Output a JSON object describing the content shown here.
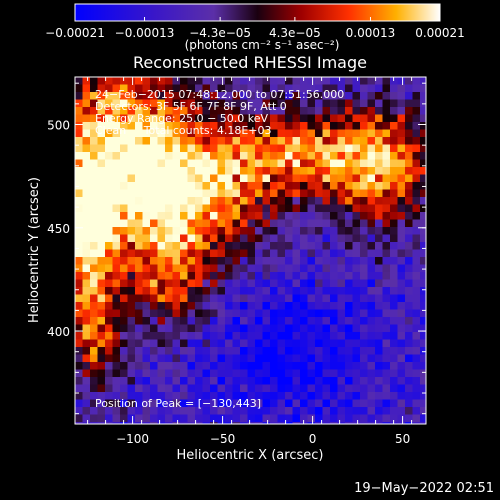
{
  "chart_data": {
    "type": "heatmap",
    "title": "Reconstructed RHESSI Image",
    "xlabel": "Heliocentric X (arcsec)",
    "ylabel": "Heliocentric Y (arcsec)",
    "xlim": [
      -132,
      63
    ],
    "ylim": [
      355,
      523
    ],
    "xticks": [
      -100,
      -50,
      0,
      50
    ],
    "xtick_labels": [
      "−100",
      "−50",
      "0",
      "50"
    ],
    "yticks": [
      400,
      450,
      500
    ],
    "ytick_labels": [
      "400",
      "450",
      "500"
    ],
    "colorbar": {
      "range": [
        -0.00021,
        0.00021
      ],
      "ticks": [
        -0.00021,
        -0.00013,
        -4.3e-05,
        4.3e-05,
        0.00013,
        0.00021
      ],
      "tick_labels": [
        "−0.00021",
        "−0.00013",
        "−4.3e−05",
        "4.3e−05",
        "0.00013",
        "0.00021"
      ],
      "unit_label": "(photons cm⁻² s⁻¹ asec⁻²)"
    },
    "annotations": [
      "24−Feb−2015 07:48:12.000 to 07:51:56.000",
      "Detectors: 3F 5F 6F 7F 8F 9F, Att 0",
      "Energy Range: 25.0 − 50.0 keV",
      "Clean     Total counts: 4.18E+03"
    ],
    "peak_label": "Position of Peak = [−130,443]",
    "peak": [
      -130,
      443
    ],
    "grid": false,
    "legend": "none"
  },
  "timestamp": "19−May−2022 02:51"
}
